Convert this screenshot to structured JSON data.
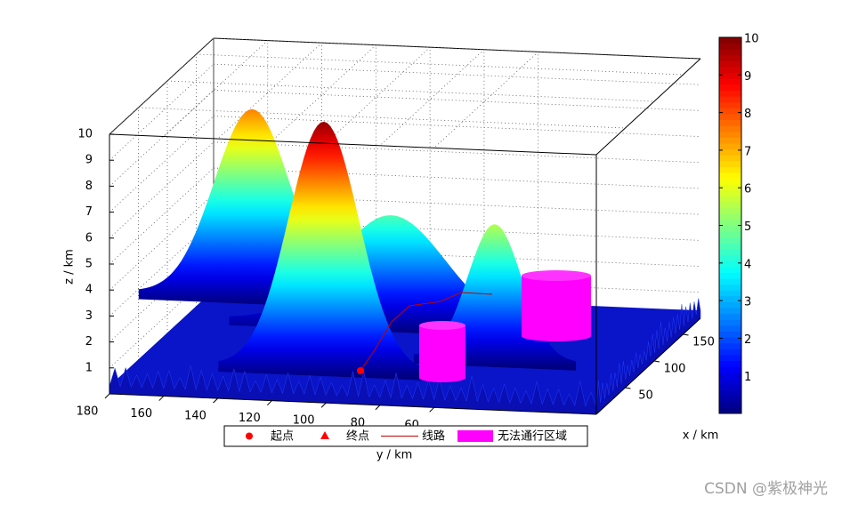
{
  "chart_data": {
    "type": "surface3d",
    "xlabel": "x / km",
    "ylabel": "y / km",
    "zlabel": "z / km",
    "xlim": [
      0,
      180
    ],
    "ylim": [
      0,
      180
    ],
    "zlim": [
      0,
      10
    ],
    "xticks": [
      50,
      100,
      150
    ],
    "yticks": [
      60,
      80,
      100,
      120,
      140,
      160,
      180
    ],
    "zticks": [
      1,
      2,
      3,
      4,
      5,
      6,
      7,
      8,
      9,
      10
    ],
    "grid": true,
    "peaks": {
      "x": [
        172,
        132,
        77,
        48
      ],
      "y": [
        164,
        104,
        54,
        111
      ],
      "z": [
        7.5,
        4.5,
        5.5,
        9.8
      ],
      "sigma": [
        14,
        20,
        10,
        13
      ]
    },
    "colorbar": {
      "clim": [
        0,
        10
      ],
      "ticks": [
        1,
        2,
        3,
        4,
        5,
        6,
        7,
        8,
        9,
        10
      ],
      "colormap": "jet"
    },
    "legend": {
      "labels": [
        "起点",
        "终点",
        "线路",
        "无法通行区域"
      ],
      "colors": [
        "#ff0000",
        "#ff0000",
        "#c00000",
        "#ff00ff"
      ]
    },
    "watermark": "CSDN @紫极神光"
  }
}
